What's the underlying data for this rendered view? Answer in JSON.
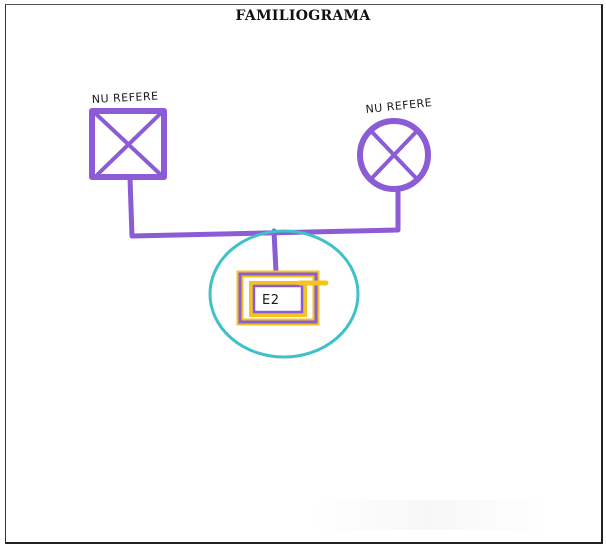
{
  "title": "FAMILIOGRAMA",
  "father": {
    "label": "NU REFERE",
    "symbol": "deceased-male-square"
  },
  "mother": {
    "label": "NU REFERE",
    "symbol": "deceased-female-circle"
  },
  "child": {
    "label": "E2",
    "symbol": "index-person-square"
  },
  "colors": {
    "purple": "#8c5bd6",
    "yellow": "#f2c321",
    "teal": "#3fc1c9",
    "ink": "#1a1a1a"
  }
}
